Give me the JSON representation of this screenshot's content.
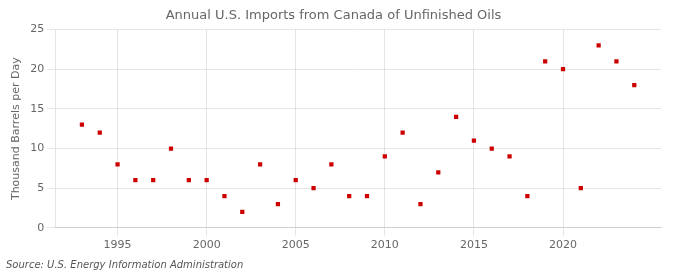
{
  "chart_data": {
    "type": "scatter",
    "title": "Annual U.S. Imports from Canada of Unfinished Oils",
    "ylabel": "Thousand Barrels per Day",
    "annotations": [
      "Source: U.S. Energy Information Administration"
    ],
    "x": [
      1993,
      1994,
      1995,
      1996,
      1997,
      1998,
      1999,
      2000,
      2001,
      2002,
      2003,
      2004,
      2005,
      2006,
      2007,
      2008,
      2009,
      2010,
      2011,
      2012,
      2013,
      2014,
      2015,
      2016,
      2017,
      2018,
      2019,
      2020,
      2021,
      2022,
      2023,
      2024
    ],
    "values": [
      13,
      12,
      8,
      6,
      6,
      10,
      6,
      6,
      4,
      2,
      8,
      3,
      6,
      5,
      8,
      4,
      4,
      9,
      12,
      3,
      7,
      14,
      11,
      10,
      9,
      4,
      21,
      20,
      5,
      23,
      21,
      18
    ],
    "color": "#cc0000",
    "marker": "square",
    "xlim": [
      1991.5,
      2025.5
    ],
    "xticks": [
      1995,
      2000,
      2005,
      2010,
      2015,
      2020
    ],
    "ylim": [
      0,
      25
    ],
    "yticks": [
      0,
      5,
      10,
      15,
      20,
      25
    ],
    "grid": true
  }
}
